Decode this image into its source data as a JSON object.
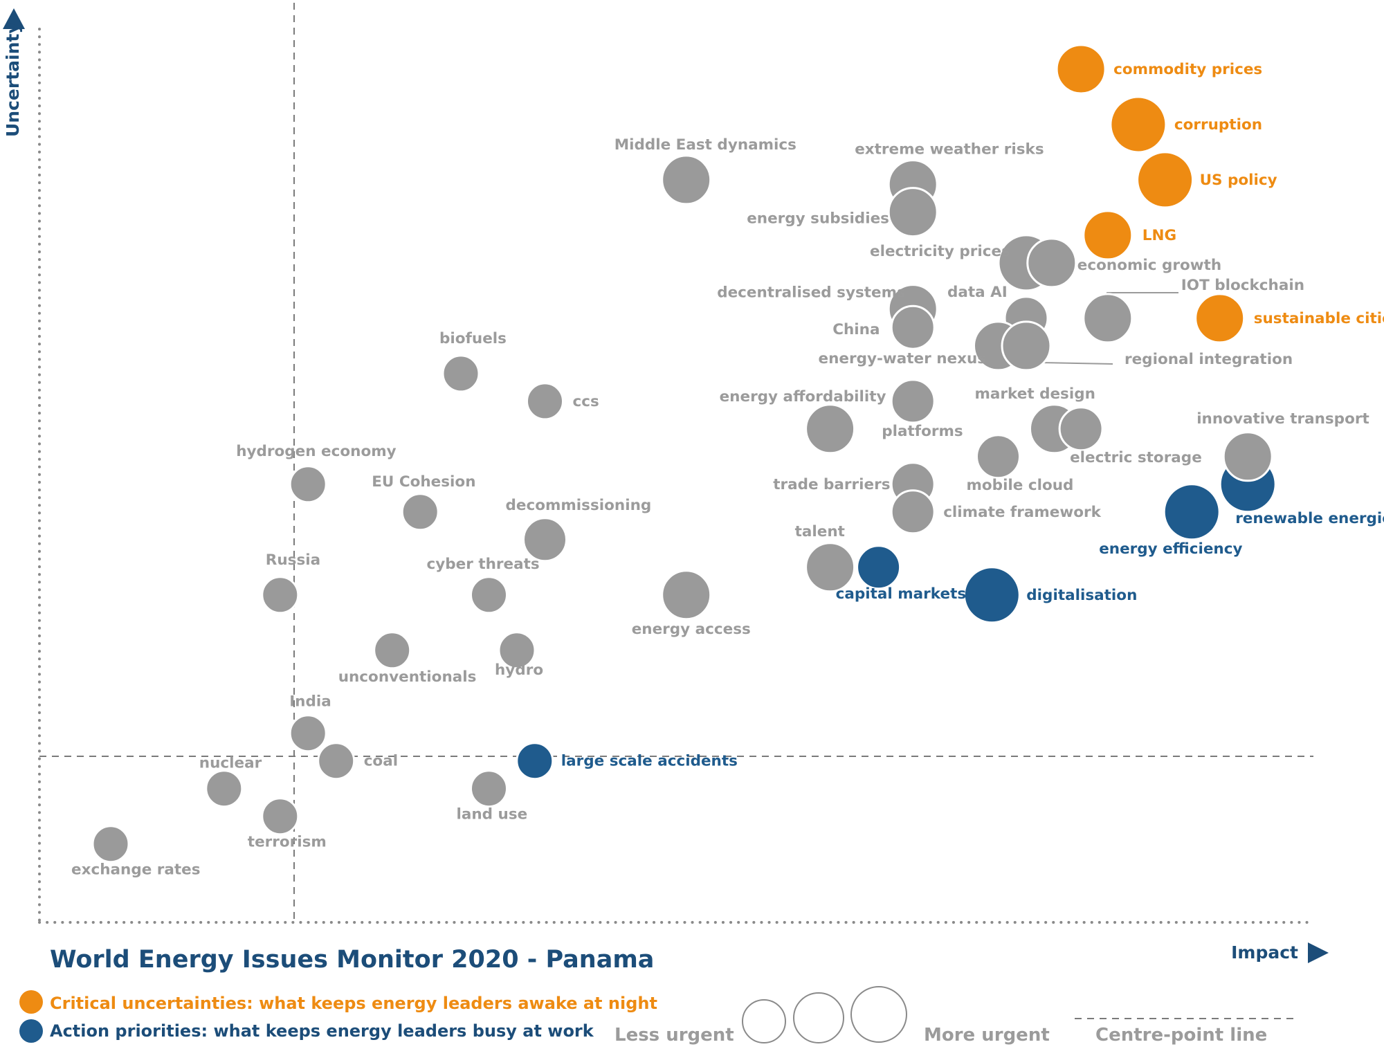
{
  "chart_data": {
    "type": "scatter",
    "title": "World Energy Issues Monitor 2020 - Panama",
    "xlabel": "Impact",
    "ylabel": "Uncertainty",
    "xlim": [
      0,
      100
    ],
    "ylim": [
      0,
      100
    ],
    "centre": {
      "x": 20,
      "y": 18
    },
    "colors": {
      "grey": "#9a9a9a",
      "orange": "#ee8b12",
      "blue": "#1f5b8d",
      "navy": "#1c4d79"
    },
    "points": [
      {
        "label": "commodity prices",
        "x": 81.8,
        "y": 92.5,
        "size": 3,
        "category": "critical"
      },
      {
        "label": "corruption",
        "x": 86.3,
        "y": 86.5,
        "size": 4,
        "category": "critical"
      },
      {
        "label": "US policy",
        "x": 88.4,
        "y": 80.5,
        "size": 4,
        "category": "critical"
      },
      {
        "label": "LNG",
        "x": 83.9,
        "y": 74.5,
        "size": 3,
        "category": "critical"
      },
      {
        "label": "sustainable cities",
        "x": 92.7,
        "y": 65.5,
        "size": 3,
        "category": "critical"
      },
      {
        "label": "renewable energies",
        "x": 94.9,
        "y": 47.5,
        "size": 4,
        "category": "priority"
      },
      {
        "label": "energy efficiency",
        "x": 90.5,
        "y": 44.5,
        "size": 4,
        "category": "priority"
      },
      {
        "label": "digitalisation",
        "x": 74.8,
        "y": 35.5,
        "size": 4,
        "category": "priority"
      },
      {
        "label": "capital markets",
        "x": 65.9,
        "y": 38.5,
        "size": 2,
        "category": "priority"
      },
      {
        "label": "large scale accidents",
        "x": 38.9,
        "y": 17.5,
        "size": 1,
        "category": "priority"
      },
      {
        "label": "Middle East dynamics",
        "x": 50.8,
        "y": 80.5,
        "size": 3,
        "category": "other"
      },
      {
        "label": "extreme weather risks",
        "x": 68.6,
        "y": 80.0,
        "size": 3,
        "category": "other"
      },
      {
        "label": "energy subsidies",
        "x": 68.6,
        "y": 77.0,
        "size": 3,
        "category": "other"
      },
      {
        "label": "electricity prices",
        "x": 77.5,
        "y": 71.5,
        "size": 4,
        "category": "other"
      },
      {
        "label": "economic growth",
        "x": 79.5,
        "y": 71.5,
        "size": 3,
        "category": "other"
      },
      {
        "label": "IOT blockchain",
        "x": 83.9,
        "y": 65.5,
        "size": 3,
        "category": "other"
      },
      {
        "label": "decentralised systems",
        "x": 68.6,
        "y": 66.5,
        "size": 3,
        "category": "other"
      },
      {
        "label": "China",
        "x": 68.6,
        "y": 64.5,
        "size": 2,
        "category": "other"
      },
      {
        "label": "data AI",
        "x": 77.5,
        "y": 65.5,
        "size": 2,
        "category": "other"
      },
      {
        "label": "energy-water nexus",
        "x": 75.3,
        "y": 62.5,
        "size": 3,
        "category": "other"
      },
      {
        "label": "regional integration",
        "x": 77.5,
        "y": 62.5,
        "size": 3,
        "category": "other"
      },
      {
        "label": "biofuels",
        "x": 33.1,
        "y": 59.5,
        "size": 1,
        "category": "other"
      },
      {
        "label": "ccs",
        "x": 39.7,
        "y": 56.5,
        "size": 1,
        "category": "other"
      },
      {
        "label": "energy affordability",
        "x": 62.1,
        "y": 53.5,
        "size": 3,
        "category": "other"
      },
      {
        "label": "platforms",
        "x": 68.6,
        "y": 56.5,
        "size": 2,
        "category": "other"
      },
      {
        "label": "market design",
        "x": 79.7,
        "y": 53.5,
        "size": 3,
        "category": "other"
      },
      {
        "label": "electric storage",
        "x": 81.8,
        "y": 53.5,
        "size": 2,
        "category": "other"
      },
      {
        "label": "innovative transport",
        "x": 94.9,
        "y": 50.5,
        "size": 3,
        "category": "other"
      },
      {
        "label": "mobile cloud",
        "x": 75.3,
        "y": 50.5,
        "size": 2,
        "category": "other"
      },
      {
        "label": "trade barriers",
        "x": 68.6,
        "y": 47.5,
        "size": 2,
        "category": "other"
      },
      {
        "label": "climate framework",
        "x": 68.6,
        "y": 44.5,
        "size": 2,
        "category": "other"
      },
      {
        "label": "hydrogen economy",
        "x": 21.1,
        "y": 47.5,
        "size": 1,
        "category": "other"
      },
      {
        "label": "EU Cohesion",
        "x": 29.9,
        "y": 44.5,
        "size": 1,
        "category": "other"
      },
      {
        "label": "decommissioning",
        "x": 39.7,
        "y": 41.5,
        "size": 2,
        "category": "other"
      },
      {
        "label": "talent",
        "x": 62.1,
        "y": 38.5,
        "size": 3,
        "category": "other"
      },
      {
        "label": "Russia",
        "x": 18.9,
        "y": 35.5,
        "size": 1,
        "category": "other"
      },
      {
        "label": "cyber threats",
        "x": 35.3,
        "y": 35.5,
        "size": 1,
        "category": "other"
      },
      {
        "label": "energy access",
        "x": 50.8,
        "y": 35.5,
        "size": 3,
        "category": "other"
      },
      {
        "label": "unconventionals",
        "x": 27.7,
        "y": 29.5,
        "size": 1,
        "category": "other"
      },
      {
        "label": "hydro",
        "x": 37.5,
        "y": 29.5,
        "size": 1,
        "category": "other"
      },
      {
        "label": "India",
        "x": 21.1,
        "y": 20.5,
        "size": 1,
        "category": "other"
      },
      {
        "label": "coal",
        "x": 23.3,
        "y": 17.5,
        "size": 1,
        "category": "other"
      },
      {
        "label": "nuclear",
        "x": 14.5,
        "y": 14.5,
        "size": 1,
        "category": "other"
      },
      {
        "label": "land use",
        "x": 35.3,
        "y": 14.5,
        "size": 1,
        "category": "other"
      },
      {
        "label": "terrorism",
        "x": 18.9,
        "y": 11.5,
        "size": 1,
        "category": "other"
      },
      {
        "label": "exchange rates",
        "x": 5.6,
        "y": 8.5,
        "size": 1,
        "category": "other"
      }
    ],
    "legend": {
      "critical": "Critical uncertainties: what keeps energy leaders awake at night",
      "priority": "Action priorities: what keeps energy leaders busy at work",
      "less_urgent": "Less urgent",
      "more_urgent": "More urgent",
      "centre_line": "Centre-point  line"
    }
  }
}
